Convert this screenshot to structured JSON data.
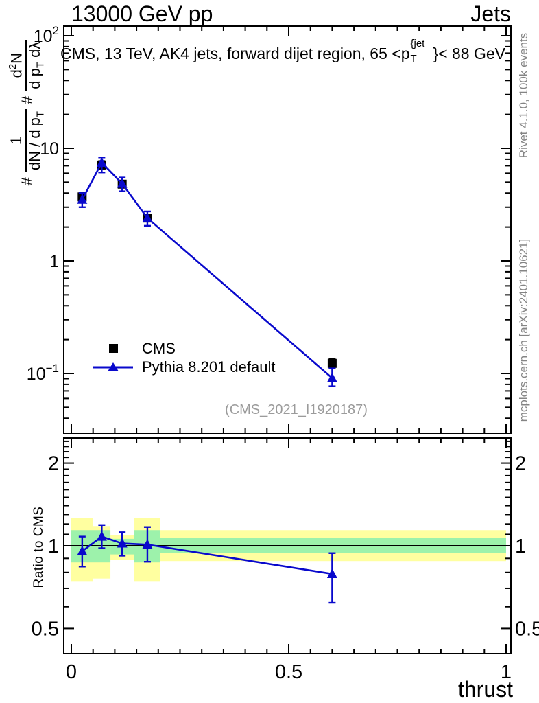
{
  "header": {
    "title_left": "13000 GeV pp",
    "title_right": "Jets"
  },
  "panel_title": {
    "prefix": "CMS, 13 TeV, AK4 jets, forward dijet region, 65 <p",
    "sup": "{jet",
    "sub": "T",
    "suffix": "}< 88 GeV"
  },
  "ylabel_parts": {
    "hash1": "#",
    "num1": "1",
    "den1_a": "dN / d p",
    "den1_sub": "T",
    "hash2": "#",
    "num2_a": "d",
    "num2_sup": "2",
    "num2_b": "N",
    "den2_a": "d p",
    "den2_sub": "T",
    "den2_b": " dλ"
  },
  "legend": {
    "items": [
      {
        "label": "CMS",
        "marker": "black-square"
      },
      {
        "label": "Pythia 8.201 default",
        "marker": "blue-triangle-line"
      }
    ]
  },
  "watermark": "(CMS_2021_I1920187)",
  "right_texts": {
    "top": "Rivet 4.1.0,  100k events",
    "bottom": "mcplots.cern.ch [arXiv:2401.10621]"
  },
  "colors": {
    "pythia_blue": "#0909cc",
    "band_yellow": "#ffffa0",
    "band_green": "#9df2ab",
    "frame_black": "#000000",
    "gray_text": "#848484",
    "watermark_gray": "#9b9b9b"
  },
  "chart_data": {
    "type": "line",
    "title": "CMS, 13 TeV, AK4 jets, forward dijet region, 65 <p^{jet}_T}< 88 GeV",
    "xlabel": "thrust",
    "ylabel": "# 1/(dN / d p_T) # d²N/(d p_T dλ)",
    "legend_position": "left-middle",
    "grid": false,
    "x_ticks": [
      {
        "v": 0,
        "label": "0"
      },
      {
        "v": 0.5,
        "label": "0.5"
      },
      {
        "v": 1,
        "label": "1"
      }
    ],
    "x_minor_step": 0.05,
    "xlim": [
      -0.017,
      1.011
    ],
    "main_panel": {
      "yscale": "log",
      "ylim": [
        0.03,
        122
      ],
      "yticks": [
        {
          "v": 100,
          "base": "10",
          "sup": "2"
        },
        {
          "v": 10,
          "base": "10",
          "sup": ""
        },
        {
          "v": 1,
          "base": "1",
          "sup": ""
        },
        {
          "v": 0.1,
          "base": "10",
          "sup": "−1"
        }
      ],
      "series": [
        {
          "name": "CMS",
          "marker": "square",
          "color": "#000000",
          "line": false,
          "x": [
            0.025,
            0.07,
            0.117,
            0.175,
            0.6
          ],
          "y": [
            3.7,
            7.1,
            4.8,
            2.4,
            0.123
          ],
          "err_lo": [
            3.35,
            6.6,
            4.5,
            2.25,
            0.112
          ],
          "err_hi": [
            4.05,
            7.7,
            5.1,
            2.55,
            0.135
          ]
        },
        {
          "name": "Pythia 8.201 default",
          "marker": "triangle",
          "color": "#0909cc",
          "line": true,
          "x": [
            0.025,
            0.07,
            0.117,
            0.175,
            0.6
          ],
          "y": [
            3.5,
            7.45,
            4.85,
            2.4,
            0.091
          ],
          "err_lo": [
            3.0,
            6.1,
            4.15,
            2.05,
            0.077
          ],
          "err_hi": [
            4.0,
            8.3,
            5.5,
            2.75,
            0.111
          ]
        }
      ]
    },
    "ratio_panel": {
      "yscale": "log",
      "ylim": [
        0.405,
        2.47
      ],
      "ylabel": "Ratio to CMS",
      "unity": 1,
      "yticks": [
        {
          "v": 2,
          "label": "2"
        },
        {
          "v": 1,
          "label": "1"
        },
        {
          "v": 0.5,
          "label": "0.5"
        }
      ],
      "bands": {
        "bin_edges": [
          0,
          0.05,
          0.09,
          0.145,
          0.205,
          1.0
        ],
        "yellow_lo": [
          0.74,
          0.76,
          0.89,
          0.74,
          0.88
        ],
        "yellow_hi": [
          1.26,
          1.18,
          1.09,
          1.26,
          1.14
        ],
        "green_lo": [
          0.87,
          0.87,
          0.93,
          0.87,
          0.94
        ],
        "green_hi": [
          1.14,
          1.14,
          1.06,
          1.14,
          1.07
        ]
      },
      "series": {
        "name": "Pythia 8.201 default / CMS",
        "marker": "triangle",
        "color": "#0909cc",
        "line": true,
        "x": [
          0.025,
          0.07,
          0.117,
          0.175,
          0.6
        ],
        "y": [
          0.955,
          1.08,
          1.02,
          1.01,
          0.79
        ],
        "err_lo": [
          0.84,
          0.98,
          0.92,
          0.875,
          0.62
        ],
        "err_hi": [
          1.08,
          1.19,
          1.12,
          1.17,
          0.94
        ]
      }
    }
  }
}
